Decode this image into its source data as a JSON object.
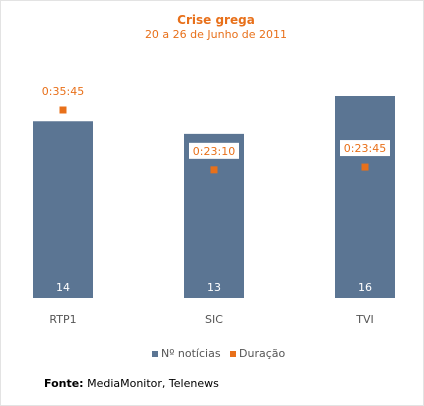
{
  "chart_data": {
    "type": "bar",
    "title": "Crise grega",
    "subtitle": "20 a 26 de Junho de 2011",
    "categories": [
      "RTP1",
      "SIC",
      "TVI"
    ],
    "series": [
      {
        "name": "Nº notícias",
        "type": "bar",
        "values": [
          14,
          13,
          16
        ],
        "color": "#5b7593"
      },
      {
        "name": "Duração",
        "type": "scatter",
        "values": [
          "0:35:45",
          "0:23:10",
          "0:23:45"
        ],
        "color": "#e8701a"
      }
    ],
    "legend_position": "bottom",
    "grid": false
  },
  "source": {
    "label": "Fonte:",
    "text": " MediaMonitor, Telenews"
  }
}
